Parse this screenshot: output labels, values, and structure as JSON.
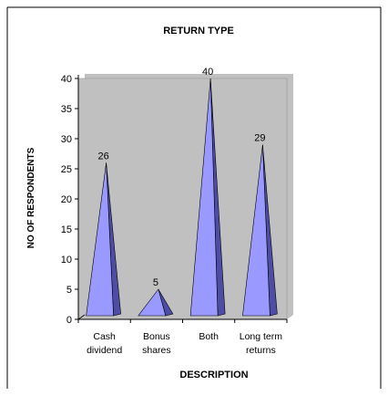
{
  "chart_data": {
    "type": "bar",
    "shape": "pyramid-3d",
    "title": "RETURN TYPE",
    "xlabel": "DESCRIPTION",
    "ylabel": "NO OF RESPONDENTS",
    "categories": [
      [
        "Cash",
        "dividend"
      ],
      [
        "Bonus",
        "shares"
      ],
      [
        "Both"
      ],
      [
        "Long term",
        "returns"
      ]
    ],
    "values": [
      26,
      5,
      40,
      29
    ],
    "data_labels": [
      "26",
      "5",
      "40",
      "29"
    ],
    "ylim": [
      0,
      40
    ],
    "yticks": [
      "0",
      "5",
      "10",
      "15",
      "20",
      "25",
      "30",
      "35",
      "40"
    ],
    "grid": false,
    "legend": "none",
    "colors": {
      "plot_area": "#c0c0c0",
      "wall_edge": "#9a9a9a",
      "pyramid_front": "#9999ff",
      "pyramid_side": "#4d4da6",
      "pyramid_edge": "#000000"
    }
  }
}
